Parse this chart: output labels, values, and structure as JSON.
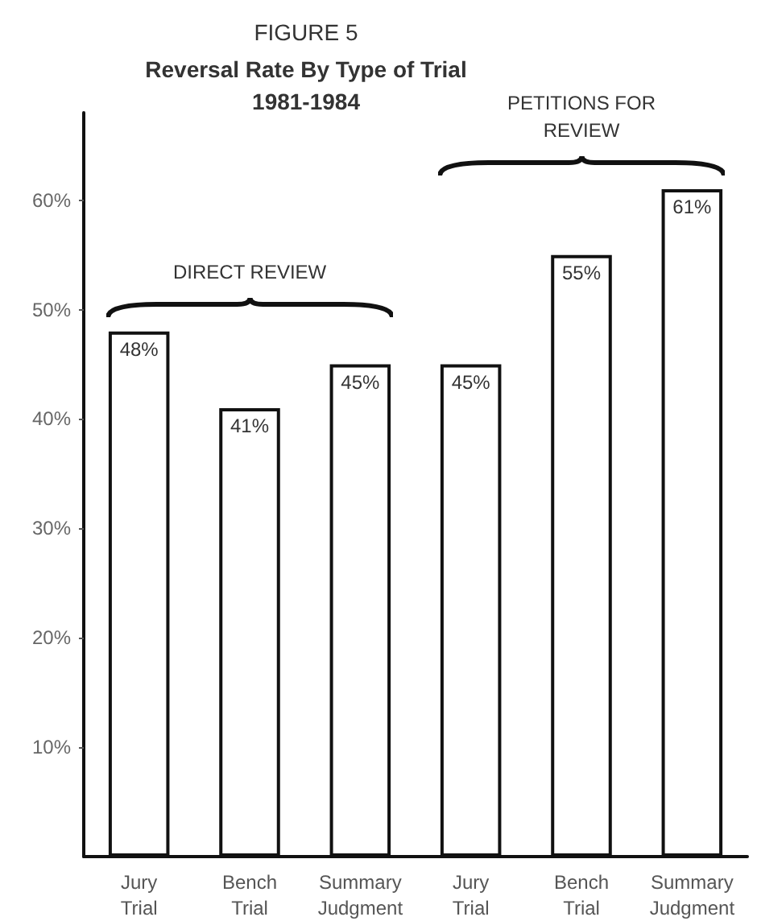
{
  "chart_data": {
    "type": "bar",
    "title": "FIGURE 5",
    "subtitle": "Reversal Rate By Type of Trial\n1981-1984",
    "categories": [
      "Jury Trial",
      "Bench Trial",
      "Summary Judgment",
      "Jury Trial",
      "Bench Trial",
      "Summary Judgment"
    ],
    "values": [
      48,
      41,
      45,
      45,
      55,
      61
    ],
    "value_labels": [
      "48%",
      "41%",
      "45%",
      "45%",
      "55%",
      "61%"
    ],
    "color": "#ffffff",
    "ylim": [
      0,
      68
    ],
    "yticks": [
      {
        "value": 10,
        "label": "10%"
      },
      {
        "value": 20,
        "label": "20%"
      },
      {
        "value": 30,
        "label": "30%"
      },
      {
        "value": 40,
        "label": "40%"
      },
      {
        "value": 50,
        "label": "50%"
      },
      {
        "value": 60,
        "label": "60%"
      }
    ],
    "annotations": [
      "DIRECT REVIEW",
      "PETITIONS FOR\nREVIEW"
    ]
  }
}
